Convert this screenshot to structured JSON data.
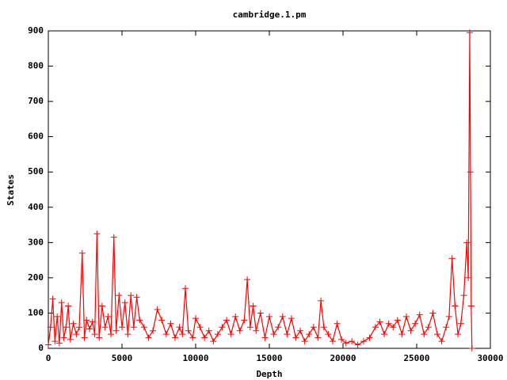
{
  "chart_data": {
    "type": "linespoints",
    "title": "cambridge.1.pm",
    "x_label": "Depth",
    "y_label": "States",
    "color": "#ff0000",
    "xlim": [
      0,
      30000
    ],
    "xticks": [
      0,
      5000,
      10000,
      15000,
      20000,
      25000,
      30000
    ],
    "ylim": [
      0,
      900
    ],
    "yticks": [
      0,
      100,
      200,
      300,
      400,
      500,
      600,
      700,
      800,
      900
    ],
    "x": [
      0,
      150,
      300,
      450,
      600,
      750,
      900,
      1050,
      1200,
      1350,
      1500,
      1700,
      1900,
      2100,
      2300,
      2450,
      2600,
      2800,
      3000,
      3150,
      3300,
      3450,
      3650,
      3850,
      4050,
      4250,
      4450,
      4600,
      4800,
      5000,
      5200,
      5400,
      5600,
      5800,
      6000,
      6200,
      6500,
      6800,
      7100,
      7400,
      7700,
      8000,
      8300,
      8600,
      8900,
      9100,
      9300,
      9500,
      9800,
      10000,
      10300,
      10600,
      10900,
      11200,
      11500,
      11800,
      12100,
      12400,
      12700,
      13000,
      13300,
      13500,
      13700,
      13900,
      14100,
      14400,
      14700,
      15000,
      15300,
      15600,
      15900,
      16200,
      16500,
      16800,
      17100,
      17400,
      17700,
      18000,
      18300,
      18500,
      18700,
      19000,
      19300,
      19600,
      19900,
      20200,
      20600,
      21000,
      21400,
      21800,
      22200,
      22500,
      22800,
      23100,
      23400,
      23700,
      24000,
      24300,
      24600,
      24900,
      25200,
      25500,
      25800,
      26100,
      26400,
      26700,
      27000,
      27200,
      27400,
      27600,
      27800,
      28000,
      28200,
      28400,
      28500,
      28600,
      28650,
      28700,
      28750
    ],
    "values": [
      10,
      60,
      140,
      20,
      90,
      15,
      130,
      30,
      60,
      120,
      25,
      70,
      40,
      60,
      270,
      30,
      80,
      55,
      75,
      40,
      325,
      30,
      120,
      60,
      90,
      40,
      315,
      50,
      150,
      60,
      130,
      40,
      150,
      60,
      145,
      80,
      60,
      30,
      50,
      110,
      80,
      40,
      70,
      30,
      60,
      40,
      170,
      50,
      30,
      85,
      60,
      30,
      50,
      20,
      40,
      60,
      80,
      40,
      90,
      50,
      80,
      195,
      60,
      120,
      50,
      100,
      30,
      90,
      40,
      60,
      90,
      40,
      85,
      30,
      50,
      20,
      40,
      60,
      30,
      135,
      60,
      40,
      20,
      70,
      25,
      15,
      20,
      10,
      20,
      30,
      60,
      75,
      40,
      70,
      60,
      80,
      40,
      90,
      50,
      70,
      95,
      40,
      60,
      100,
      40,
      20,
      60,
      90,
      255,
      120,
      40,
      70,
      150,
      300,
      200,
      895,
      500,
      120,
      0
    ]
  }
}
